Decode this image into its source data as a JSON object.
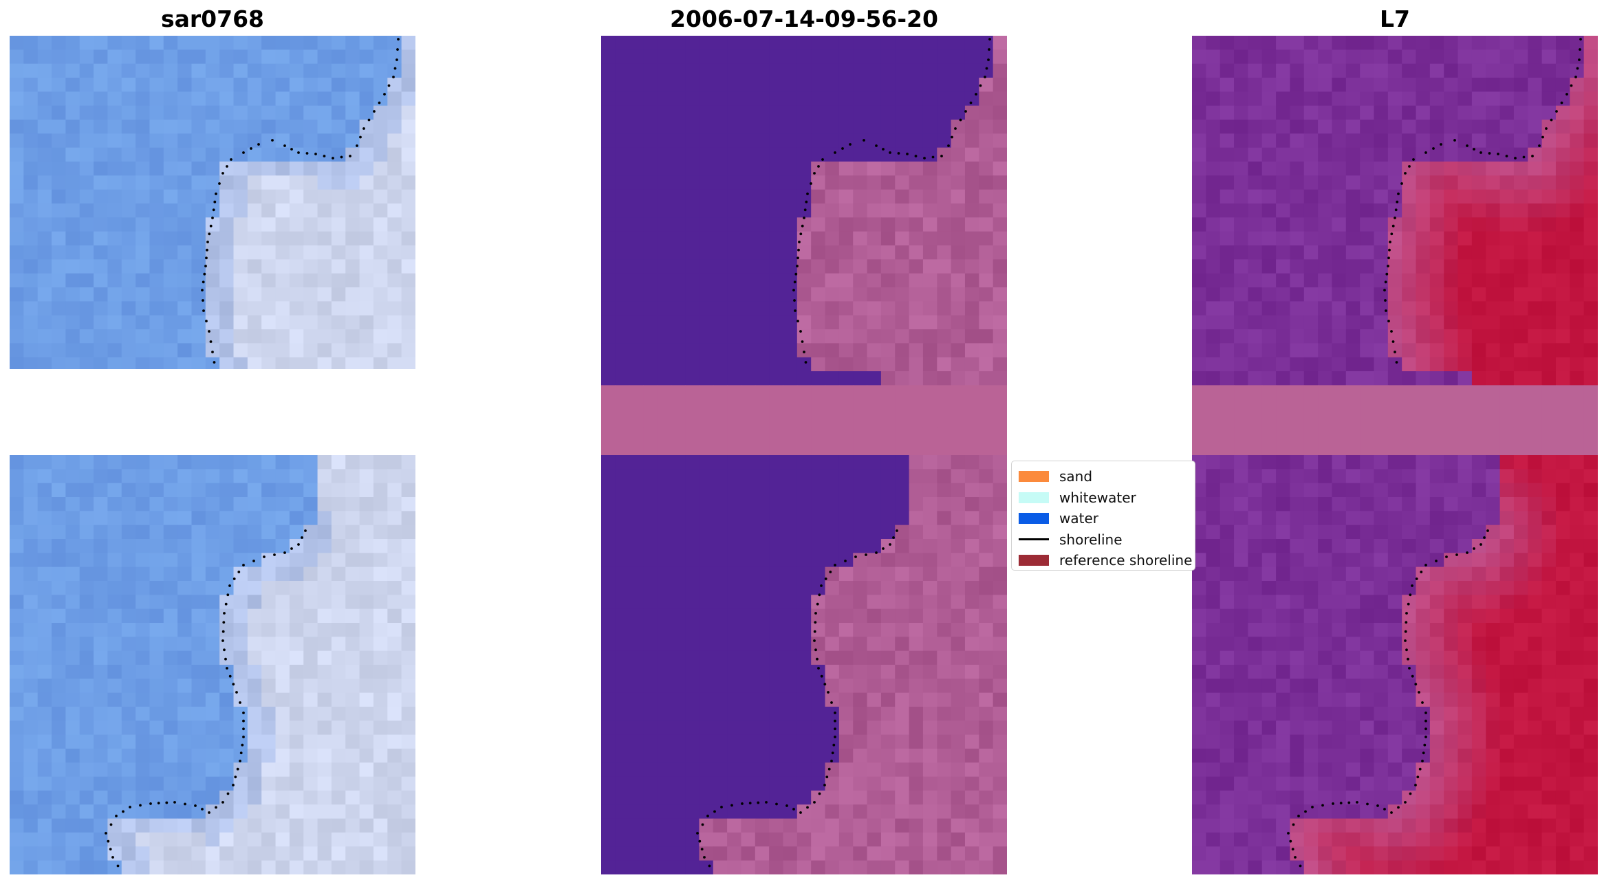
{
  "titles": {
    "left": "sar0768",
    "center": "2006-07-14-09-56-20",
    "right": "L7"
  },
  "legend": [
    {
      "label": "sand",
      "color": "#fb8a3c",
      "kind": "patch"
    },
    {
      "label": "whitewater",
      "color": "#c6fbf6",
      "kind": "patch"
    },
    {
      "label": "water",
      "color": "#0a5ce6",
      "kind": "patch"
    },
    {
      "label": "shoreline",
      "color": "#000000",
      "kind": "line"
    },
    {
      "label": "reference shoreline",
      "color": "#9c2b35",
      "kind": "patch"
    }
  ],
  "colors": {
    "rgb_water": "#6e9ee6",
    "rgb_sand": "#d2d8ee",
    "class_water": "#532396",
    "class_land": "#b05d95",
    "class_stripe": "#ba6396",
    "index_water": "#7b2f98",
    "index_land": "#c21540"
  }
}
